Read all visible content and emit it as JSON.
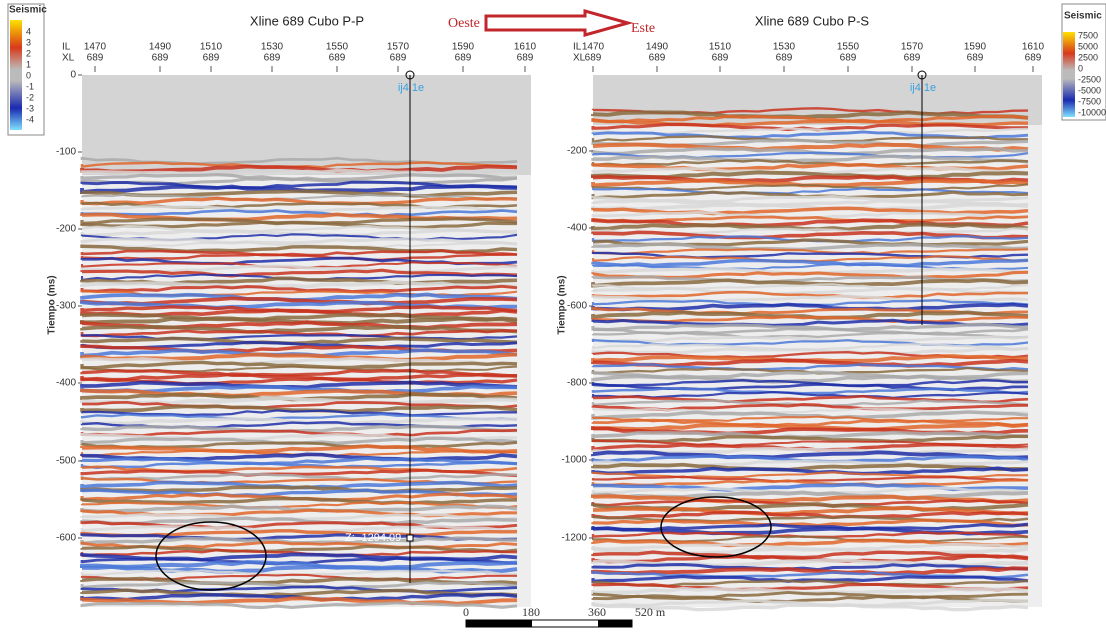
{
  "arrow": {
    "from": "Oeste",
    "to": "Este"
  },
  "legends": [
    {
      "title": "Seismic",
      "labels": [
        "4",
        "3",
        "2",
        "1",
        "0",
        "-1",
        "-2",
        "-3",
        "-4"
      ]
    },
    {
      "title": "Seismic",
      "labels": [
        "7500",
        "5000",
        "2500",
        "0",
        "-2500",
        "-5000",
        "-7500",
        "-10000"
      ]
    }
  ],
  "panels": [
    {
      "title": "Xline 689 Cubo P-P",
      "il_label": "IL",
      "xl_label": "XL",
      "il": [
        "1470",
        "1490",
        "1510",
        "1530",
        "1550",
        "1570",
        "1590",
        "1610"
      ],
      "xl": [
        "689",
        "689",
        "689",
        "689",
        "689",
        "689",
        "689",
        "689"
      ],
      "y_label": "Tiempo (ms)",
      "yticks": [
        "0",
        "-100",
        "-200",
        "-300",
        "-400",
        "-500",
        "-600"
      ],
      "well": "ij4 1e",
      "annotation": "Z: -1294.09"
    },
    {
      "title": "Xline 689 Cubo P-S",
      "il_label": "IL",
      "xl_label": "XL",
      "il": [
        "1470",
        "1490",
        "1510",
        "1530",
        "1550",
        "1570",
        "1590",
        "1610"
      ],
      "xl": [
        "689",
        "689",
        "689",
        "689",
        "689",
        "689",
        "689",
        "689"
      ],
      "y_label": "Tiempo (ms)",
      "yticks": [
        "-200",
        "-400",
        "-600",
        "-800",
        "-1000",
        "-1200"
      ],
      "well": "ij4 1e"
    }
  ],
  "scale_bar": [
    "0",
    "180",
    "360",
    "520 m"
  ]
}
